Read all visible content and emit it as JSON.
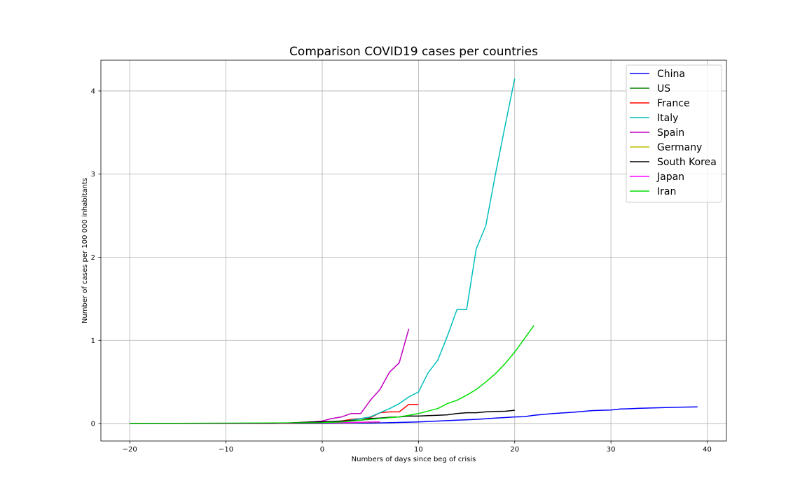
{
  "chart_data": {
    "type": "line",
    "title": "Comparison COVID19 cases per countries",
    "xlabel": "Numbers of days since beg of crisis",
    "ylabel": "Number of cases per 100 000 inhabitants",
    "xlim": [
      -23,
      42
    ],
    "ylim": [
      -0.21,
      4.37
    ],
    "xticks": [
      -20,
      -10,
      0,
      10,
      20,
      30,
      40
    ],
    "yticks": [
      0,
      1,
      2,
      3,
      4
    ],
    "xtick_labels": [
      "−20",
      "−10",
      "0",
      "10",
      "20",
      "30",
      "40"
    ],
    "ytick_labels": [
      "0",
      "1",
      "2",
      "3",
      "4"
    ],
    "grid": true,
    "legend_position": "top-right",
    "series": [
      {
        "name": "China",
        "color": "#0000ff",
        "x": [
          -20,
          -10,
          0,
          5,
          10,
          12,
          14,
          16,
          18,
          19,
          20,
          21,
          22,
          24,
          26,
          28,
          29,
          30,
          31,
          32,
          33,
          35,
          37,
          39
        ],
        "y": [
          0,
          0,
          0,
          0.005,
          0.02,
          0.03,
          0.04,
          0.05,
          0.065,
          0.072,
          0.08,
          0.082,
          0.1,
          0.12,
          0.135,
          0.155,
          0.16,
          0.162,
          0.175,
          0.178,
          0.183,
          0.19,
          0.196,
          0.2
        ]
      },
      {
        "name": "US",
        "color": "#008000",
        "x": [
          -20,
          -10,
          -2,
          0,
          2,
          4,
          6
        ],
        "y": [
          0,
          0,
          0,
          0.002,
          0.005,
          0.01,
          0.015
        ]
      },
      {
        "name": "France",
        "color": "#ff0000",
        "x": [
          -20,
          -5,
          0,
          2,
          3,
          4,
          5,
          6,
          7,
          8,
          9,
          10
        ],
        "y": [
          0,
          0,
          0.01,
          0.03,
          0.05,
          0.06,
          0.07,
          0.13,
          0.14,
          0.14,
          0.23,
          0.23
        ]
      },
      {
        "name": "Italy",
        "color": "#00bfbf",
        "x": [
          -20,
          -5,
          0,
          2,
          3,
          4,
          5,
          6,
          7,
          8,
          9,
          10,
          11,
          12,
          13,
          14,
          15,
          16,
          17,
          18,
          19,
          20
        ],
        "y": [
          0,
          0,
          0.01,
          0.02,
          0.04,
          0.06,
          0.08,
          0.13,
          0.18,
          0.24,
          0.32,
          0.38,
          0.61,
          0.76,
          1.05,
          1.37,
          1.37,
          2.1,
          2.38,
          3.0,
          3.58,
          4.15
        ]
      },
      {
        "name": "Spain",
        "color": "#bf00bf",
        "x": [
          -20,
          -3,
          -1,
          0,
          1,
          2,
          3,
          4,
          5,
          6,
          7,
          8,
          9
        ],
        "y": [
          0,
          0,
          0.02,
          0.03,
          0.06,
          0.08,
          0.12,
          0.12,
          0.28,
          0.41,
          0.62,
          0.73,
          1.14
        ]
      },
      {
        "name": "Germany",
        "color": "#bfbf00",
        "x": [
          -20,
          -5,
          0,
          3,
          5
        ],
        "y": [
          0,
          0,
          0.005,
          0.01,
          0.02
        ]
      },
      {
        "name": "South Korea",
        "color": "#000000",
        "x": [
          -20,
          -5,
          -3,
          -1,
          0,
          2,
          4,
          5,
          6,
          7,
          8,
          9,
          10,
          11,
          12,
          13,
          14,
          15,
          16,
          17,
          18,
          19,
          20
        ],
        "y": [
          0,
          0,
          0.01,
          0.02,
          0.02,
          0.03,
          0.04,
          0.06,
          0.065,
          0.075,
          0.08,
          0.09,
          0.09,
          0.095,
          0.1,
          0.105,
          0.12,
          0.13,
          0.13,
          0.14,
          0.145,
          0.148,
          0.16
        ]
      },
      {
        "name": "Japan",
        "color": "#ff00ff",
        "x": [
          -20,
          -10,
          -2,
          0,
          2,
          4,
          6
        ],
        "y": [
          0,
          0,
          0.003,
          0.005,
          0.01,
          0.015,
          0.02
        ]
      },
      {
        "name": "Iran",
        "color": "#00dd00",
        "x": [
          -20,
          0,
          2,
          4,
          6,
          7,
          8,
          9,
          10,
          11,
          12,
          13,
          14,
          15,
          16,
          17,
          18,
          19,
          20,
          21,
          22
        ],
        "y": [
          0,
          0.01,
          0.02,
          0.04,
          0.06,
          0.07,
          0.08,
          0.1,
          0.12,
          0.15,
          0.18,
          0.24,
          0.28,
          0.34,
          0.41,
          0.5,
          0.6,
          0.72,
          0.86,
          1.02,
          1.18
        ]
      }
    ]
  }
}
